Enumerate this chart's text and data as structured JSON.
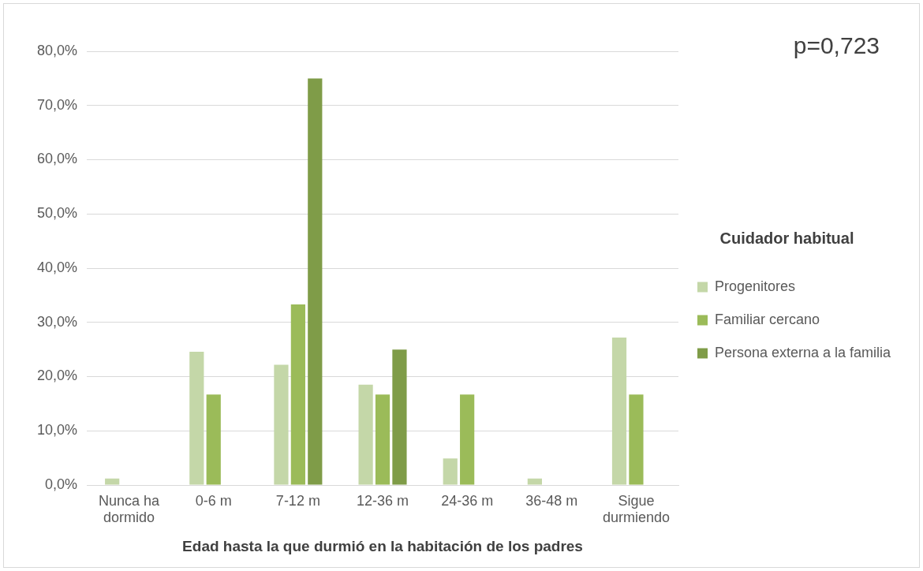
{
  "chart_data": {
    "type": "bar",
    "xlabel": "Edad hasta la que durmió en la habitación de los padres",
    "legend_title": "Cuidador habitual",
    "annotations": [
      "p=0,723"
    ],
    "categories": [
      "Nunca ha dormido",
      "0-6 m",
      "7-12 m",
      "12-36 m",
      "24-36 m",
      "36-48 m",
      "Sigue durmiendo"
    ],
    "series": [
      {
        "name": "Progenitores",
        "color": "#c4d7a8",
        "values": [
          1.2,
          24.6,
          22.2,
          18.5,
          4.9,
          1.2,
          27.2
        ]
      },
      {
        "name": "Familiar cercano",
        "color": "#9bbb59",
        "values": [
          0,
          16.7,
          33.3,
          16.7,
          16.7,
          0,
          16.7
        ]
      },
      {
        "name": "Persona externa a la familia",
        "color": "#7f9c48",
        "values": [
          0,
          0,
          75.0,
          25.0,
          0,
          0,
          0
        ]
      }
    ],
    "ylim": [
      0,
      80
    ],
    "yticks": [
      {
        "value": 0,
        "label": "0,0%"
      },
      {
        "value": 10,
        "label": "10,0%"
      },
      {
        "value": 20,
        "label": "20,0%"
      },
      {
        "value": 30,
        "label": "30,0%"
      },
      {
        "value": 40,
        "label": "40,0%"
      },
      {
        "value": 50,
        "label": "50,0%"
      },
      {
        "value": 60,
        "label": "60,0%"
      },
      {
        "value": 70,
        "label": "70,0%"
      },
      {
        "value": 80,
        "label": "80,0%"
      }
    ],
    "grid": "y",
    "legend": "right"
  }
}
